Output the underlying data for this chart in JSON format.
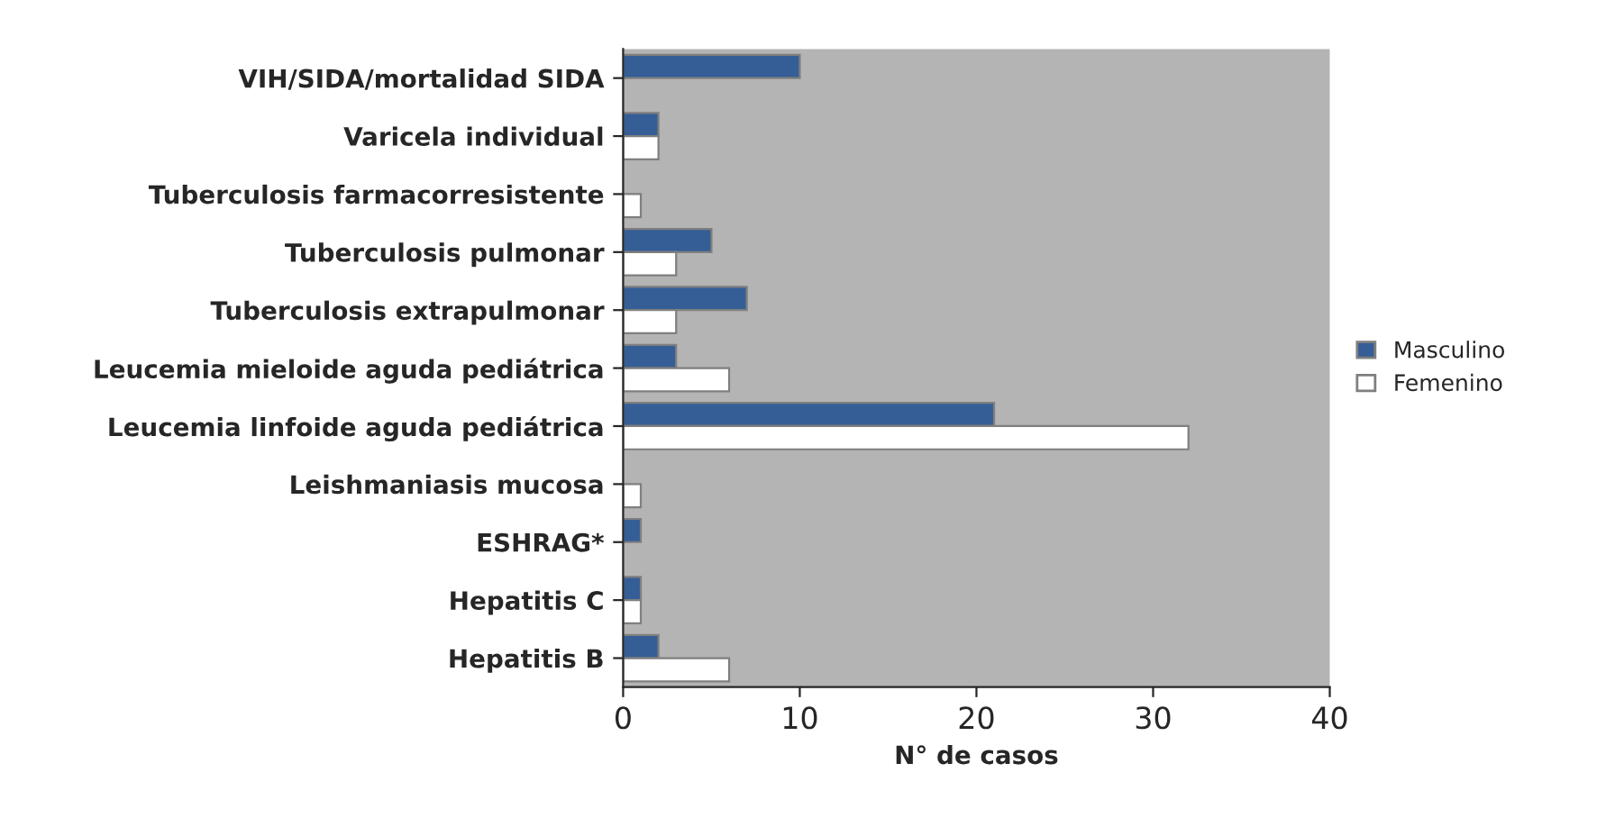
{
  "chart_data": {
    "type": "bar",
    "orientation": "horizontal",
    "xlabel": "N° de casos",
    "categories": [
      "VIH/SIDA/mortalidad SIDA",
      "Varicela individual",
      "Tuberculosis farmacorresistente",
      "Tuberculosis pulmonar",
      "Tuberculosis extrapulmonar",
      "Leucemia mieloide aguda pediátrica",
      "Leucemia linfoide aguda pediátrica",
      "Leishmaniasis mucosa",
      "ESHRAG*",
      "Hepatitis C",
      "Hepatitis B"
    ],
    "series": [
      {
        "name": "Masculino",
        "color": "#355e96",
        "values": [
          10,
          2,
          null,
          5,
          7,
          3,
          21,
          null,
          1,
          1,
          2
        ]
      },
      {
        "name": "Femenino",
        "color": "#ffffff",
        "values": [
          null,
          2,
          1,
          3,
          3,
          6,
          32,
          1,
          null,
          1,
          6
        ]
      }
    ],
    "xlim": [
      0,
      40
    ],
    "xticks": [
      0,
      10,
      20,
      30,
      40
    ],
    "grid": false,
    "legend": "right"
  }
}
